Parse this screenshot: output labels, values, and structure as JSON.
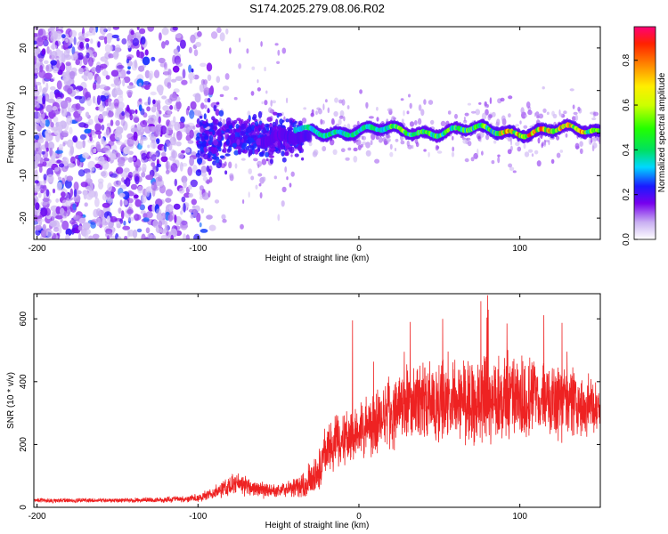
{
  "figure_title": "S174.2025.279.08.06.R02",
  "chart_data": [
    {
      "type": "heatmap",
      "title": "S174.2025.279.08.06.R02",
      "xlabel": "Height of straight line (km)",
      "ylabel": "Frequency (Hz)",
      "xlim": [
        -202,
        150
      ],
      "ylim": [
        -25,
        25
      ],
      "x_ticks": [
        -200,
        -100,
        0,
        100
      ],
      "y_ticks": [
        -20,
        -10,
        0,
        10,
        20
      ],
      "colorbar": {
        "label": "Normalized spectral amplitude",
        "range": [
          0,
          0.95
        ],
        "ticks": [
          0.0,
          0.2,
          0.4,
          0.6,
          0.8
        ],
        "colormap": "rainbow"
      },
      "ridge": {
        "description": "narrowband signal near 0 Hz",
        "x_start": -60,
        "x_end": 150,
        "center_hz": 0.5,
        "band_halfwidth_hz": 1.5
      },
      "noise_region": {
        "x_start": -202,
        "x_end": -100,
        "density": "high"
      }
    },
    {
      "type": "line",
      "xlabel": "Height of straight line (km)",
      "ylabel": "SNR (10 * v/v)",
      "xlim": [
        -202,
        150
      ],
      "ylim": [
        0,
        680
      ],
      "x_ticks": [
        -200,
        -100,
        0,
        100
      ],
      "y_ticks": [
        0,
        200,
        400,
        600
      ],
      "color": "#ee2222",
      "series": [
        {
          "name": "SNR",
          "envelope_x": [
            -202,
            -150,
            -120,
            -100,
            -90,
            -80,
            -70,
            -60,
            -50,
            -40,
            -30,
            -25,
            -20,
            -10,
            0,
            10,
            20,
            30,
            40,
            50,
            60,
            70,
            80,
            90,
            100,
            110,
            120,
            130,
            140,
            150
          ],
          "envelope_mean": [
            22,
            22,
            24,
            30,
            45,
            70,
            70,
            55,
            52,
            60,
            90,
            120,
            190,
            220,
            240,
            270,
            300,
            320,
            330,
            340,
            340,
            345,
            345,
            340,
            335,
            335,
            330,
            330,
            320,
            310
          ],
          "envelope_spread": [
            8,
            8,
            10,
            15,
            25,
            40,
            40,
            30,
            25,
            40,
            60,
            80,
            90,
            100,
            110,
            120,
            130,
            140,
            150,
            160,
            160,
            170,
            180,
            170,
            160,
            150,
            140,
            130,
            120,
            110
          ]
        }
      ],
      "peaks": [
        {
          "x": -4,
          "y": 595
        },
        {
          "x": 52,
          "y": 600
        },
        {
          "x": 80,
          "y": 675
        },
        {
          "x": 92,
          "y": 585
        }
      ]
    }
  ]
}
